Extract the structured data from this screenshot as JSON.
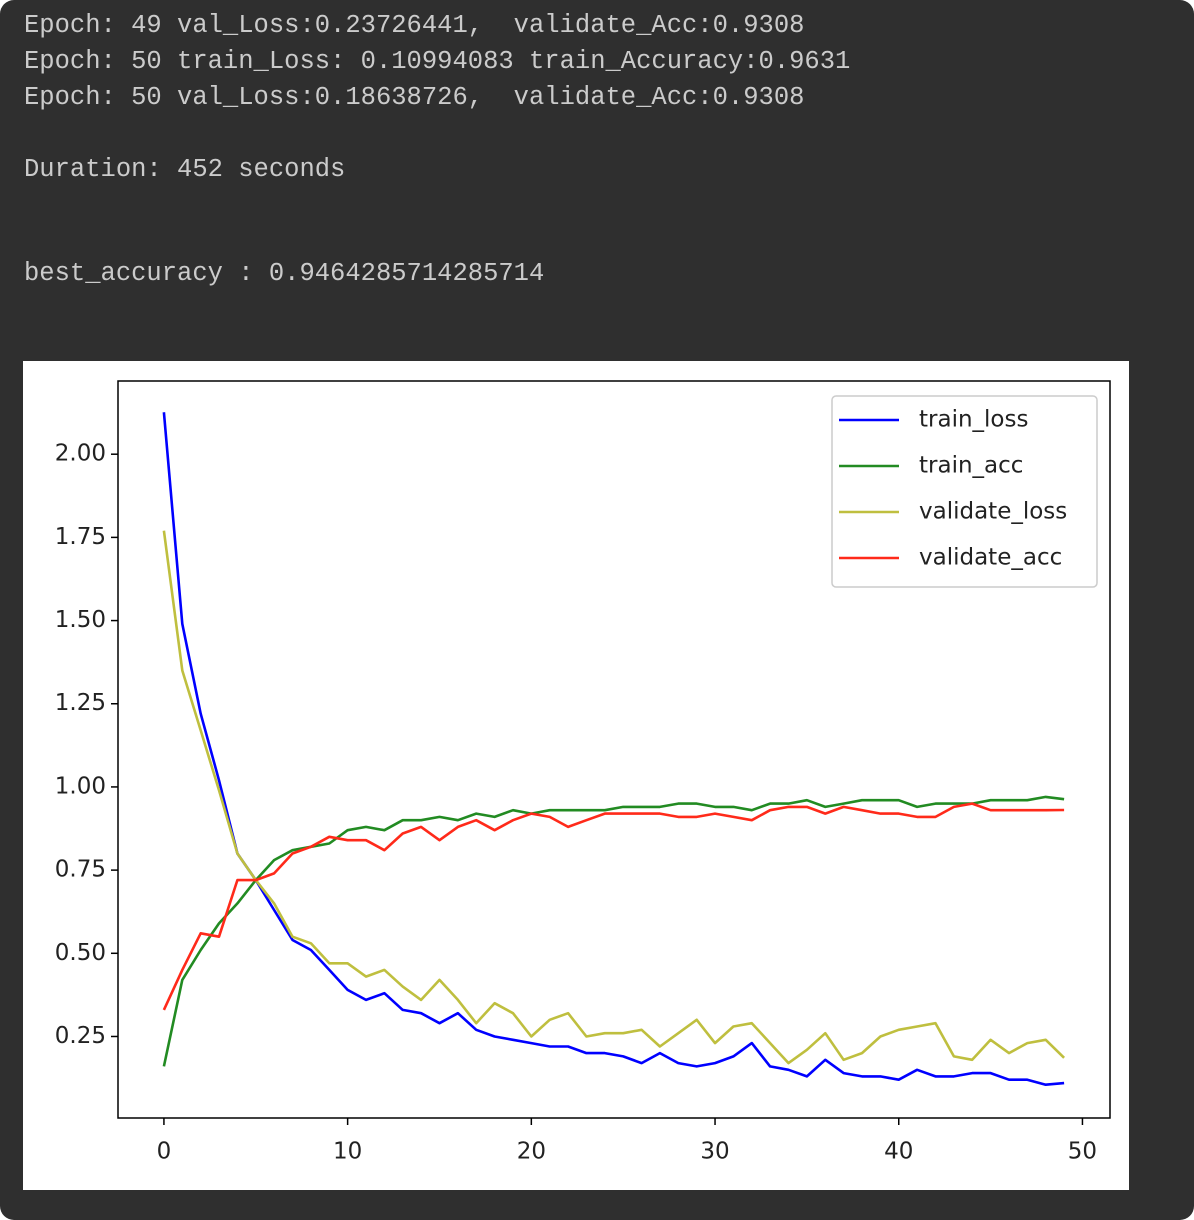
{
  "console": {
    "lines": [
      "Epoch: 49 val_Loss:0.23726441,  validate_Acc:0.9308",
      "Epoch: 50 train_Loss: 0.10994083 train_Accuracy:0.9631",
      "Epoch: 50 val_Loss:0.18638726,  validate_Acc:0.9308",
      "Duration: 452 seconds",
      "best_accuracy : 0.9464285714285714"
    ]
  },
  "chart_data": {
    "type": "line",
    "x": [
      0,
      1,
      2,
      3,
      4,
      5,
      6,
      7,
      8,
      9,
      10,
      11,
      12,
      13,
      14,
      15,
      16,
      17,
      18,
      19,
      20,
      21,
      22,
      23,
      24,
      25,
      26,
      27,
      28,
      29,
      30,
      31,
      32,
      33,
      34,
      35,
      36,
      37,
      38,
      39,
      40,
      41,
      42,
      43,
      44,
      45,
      46,
      47,
      48,
      49
    ],
    "series": [
      {
        "name": "train_loss",
        "color": "#0000ff",
        "values": [
          2.126,
          1.49,
          1.22,
          1.02,
          0.8,
          0.72,
          0.63,
          0.54,
          0.51,
          0.45,
          0.39,
          0.36,
          0.38,
          0.33,
          0.32,
          0.29,
          0.32,
          0.27,
          0.25,
          0.24,
          0.23,
          0.22,
          0.22,
          0.2,
          0.2,
          0.19,
          0.17,
          0.2,
          0.17,
          0.16,
          0.17,
          0.19,
          0.23,
          0.16,
          0.15,
          0.13,
          0.18,
          0.14,
          0.13,
          0.13,
          0.12,
          0.15,
          0.13,
          0.13,
          0.14,
          0.14,
          0.12,
          0.12,
          0.105,
          0.11
        ]
      },
      {
        "name": "train_acc",
        "color": "#228b22",
        "values": [
          0.16,
          0.42,
          0.51,
          0.59,
          0.65,
          0.72,
          0.78,
          0.81,
          0.82,
          0.83,
          0.87,
          0.88,
          0.87,
          0.9,
          0.9,
          0.91,
          0.9,
          0.92,
          0.91,
          0.93,
          0.92,
          0.93,
          0.93,
          0.93,
          0.93,
          0.94,
          0.94,
          0.94,
          0.95,
          0.95,
          0.94,
          0.94,
          0.93,
          0.95,
          0.95,
          0.96,
          0.94,
          0.95,
          0.96,
          0.96,
          0.96,
          0.94,
          0.95,
          0.95,
          0.95,
          0.96,
          0.96,
          0.96,
          0.97,
          0.9631
        ]
      },
      {
        "name": "validate_loss",
        "color": "#bfbf3f",
        "values": [
          1.77,
          1.35,
          1.17,
          0.99,
          0.8,
          0.72,
          0.65,
          0.55,
          0.53,
          0.47,
          0.47,
          0.43,
          0.45,
          0.4,
          0.36,
          0.42,
          0.36,
          0.29,
          0.35,
          0.32,
          0.25,
          0.3,
          0.32,
          0.25,
          0.26,
          0.26,
          0.27,
          0.22,
          0.26,
          0.3,
          0.23,
          0.28,
          0.29,
          0.23,
          0.17,
          0.21,
          0.26,
          0.18,
          0.2,
          0.25,
          0.27,
          0.28,
          0.29,
          0.19,
          0.18,
          0.24,
          0.2,
          0.23,
          0.24,
          0.186
        ]
      },
      {
        "name": "validate_acc",
        "color": "#ff2a1a",
        "values": [
          0.33,
          0.45,
          0.56,
          0.55,
          0.72,
          0.72,
          0.74,
          0.8,
          0.82,
          0.85,
          0.84,
          0.84,
          0.81,
          0.86,
          0.88,
          0.84,
          0.88,
          0.9,
          0.87,
          0.9,
          0.92,
          0.91,
          0.88,
          0.9,
          0.92,
          0.92,
          0.92,
          0.92,
          0.91,
          0.91,
          0.92,
          0.91,
          0.9,
          0.93,
          0.94,
          0.94,
          0.92,
          0.94,
          0.93,
          0.92,
          0.92,
          0.91,
          0.91,
          0.94,
          0.95,
          0.93,
          0.93,
          0.93,
          0.93,
          0.9308
        ]
      }
    ],
    "xlim": [
      -2.5,
      51.5
    ],
    "xticks": [
      0,
      10,
      20,
      30,
      40,
      50
    ],
    "ylim": [
      0.005,
      2.22
    ],
    "yticks": [
      0.25,
      {
        "value": 0.5,
        "label": "0.50"
      },
      0.75,
      {
        "value": 1,
        "label": "1.00"
      },
      1.25,
      {
        "value": 1.5,
        "label": "1.50"
      },
      1.75,
      {
        "value": 2,
        "label": "2.00"
      }
    ],
    "grid": false,
    "legend": "upper right"
  }
}
